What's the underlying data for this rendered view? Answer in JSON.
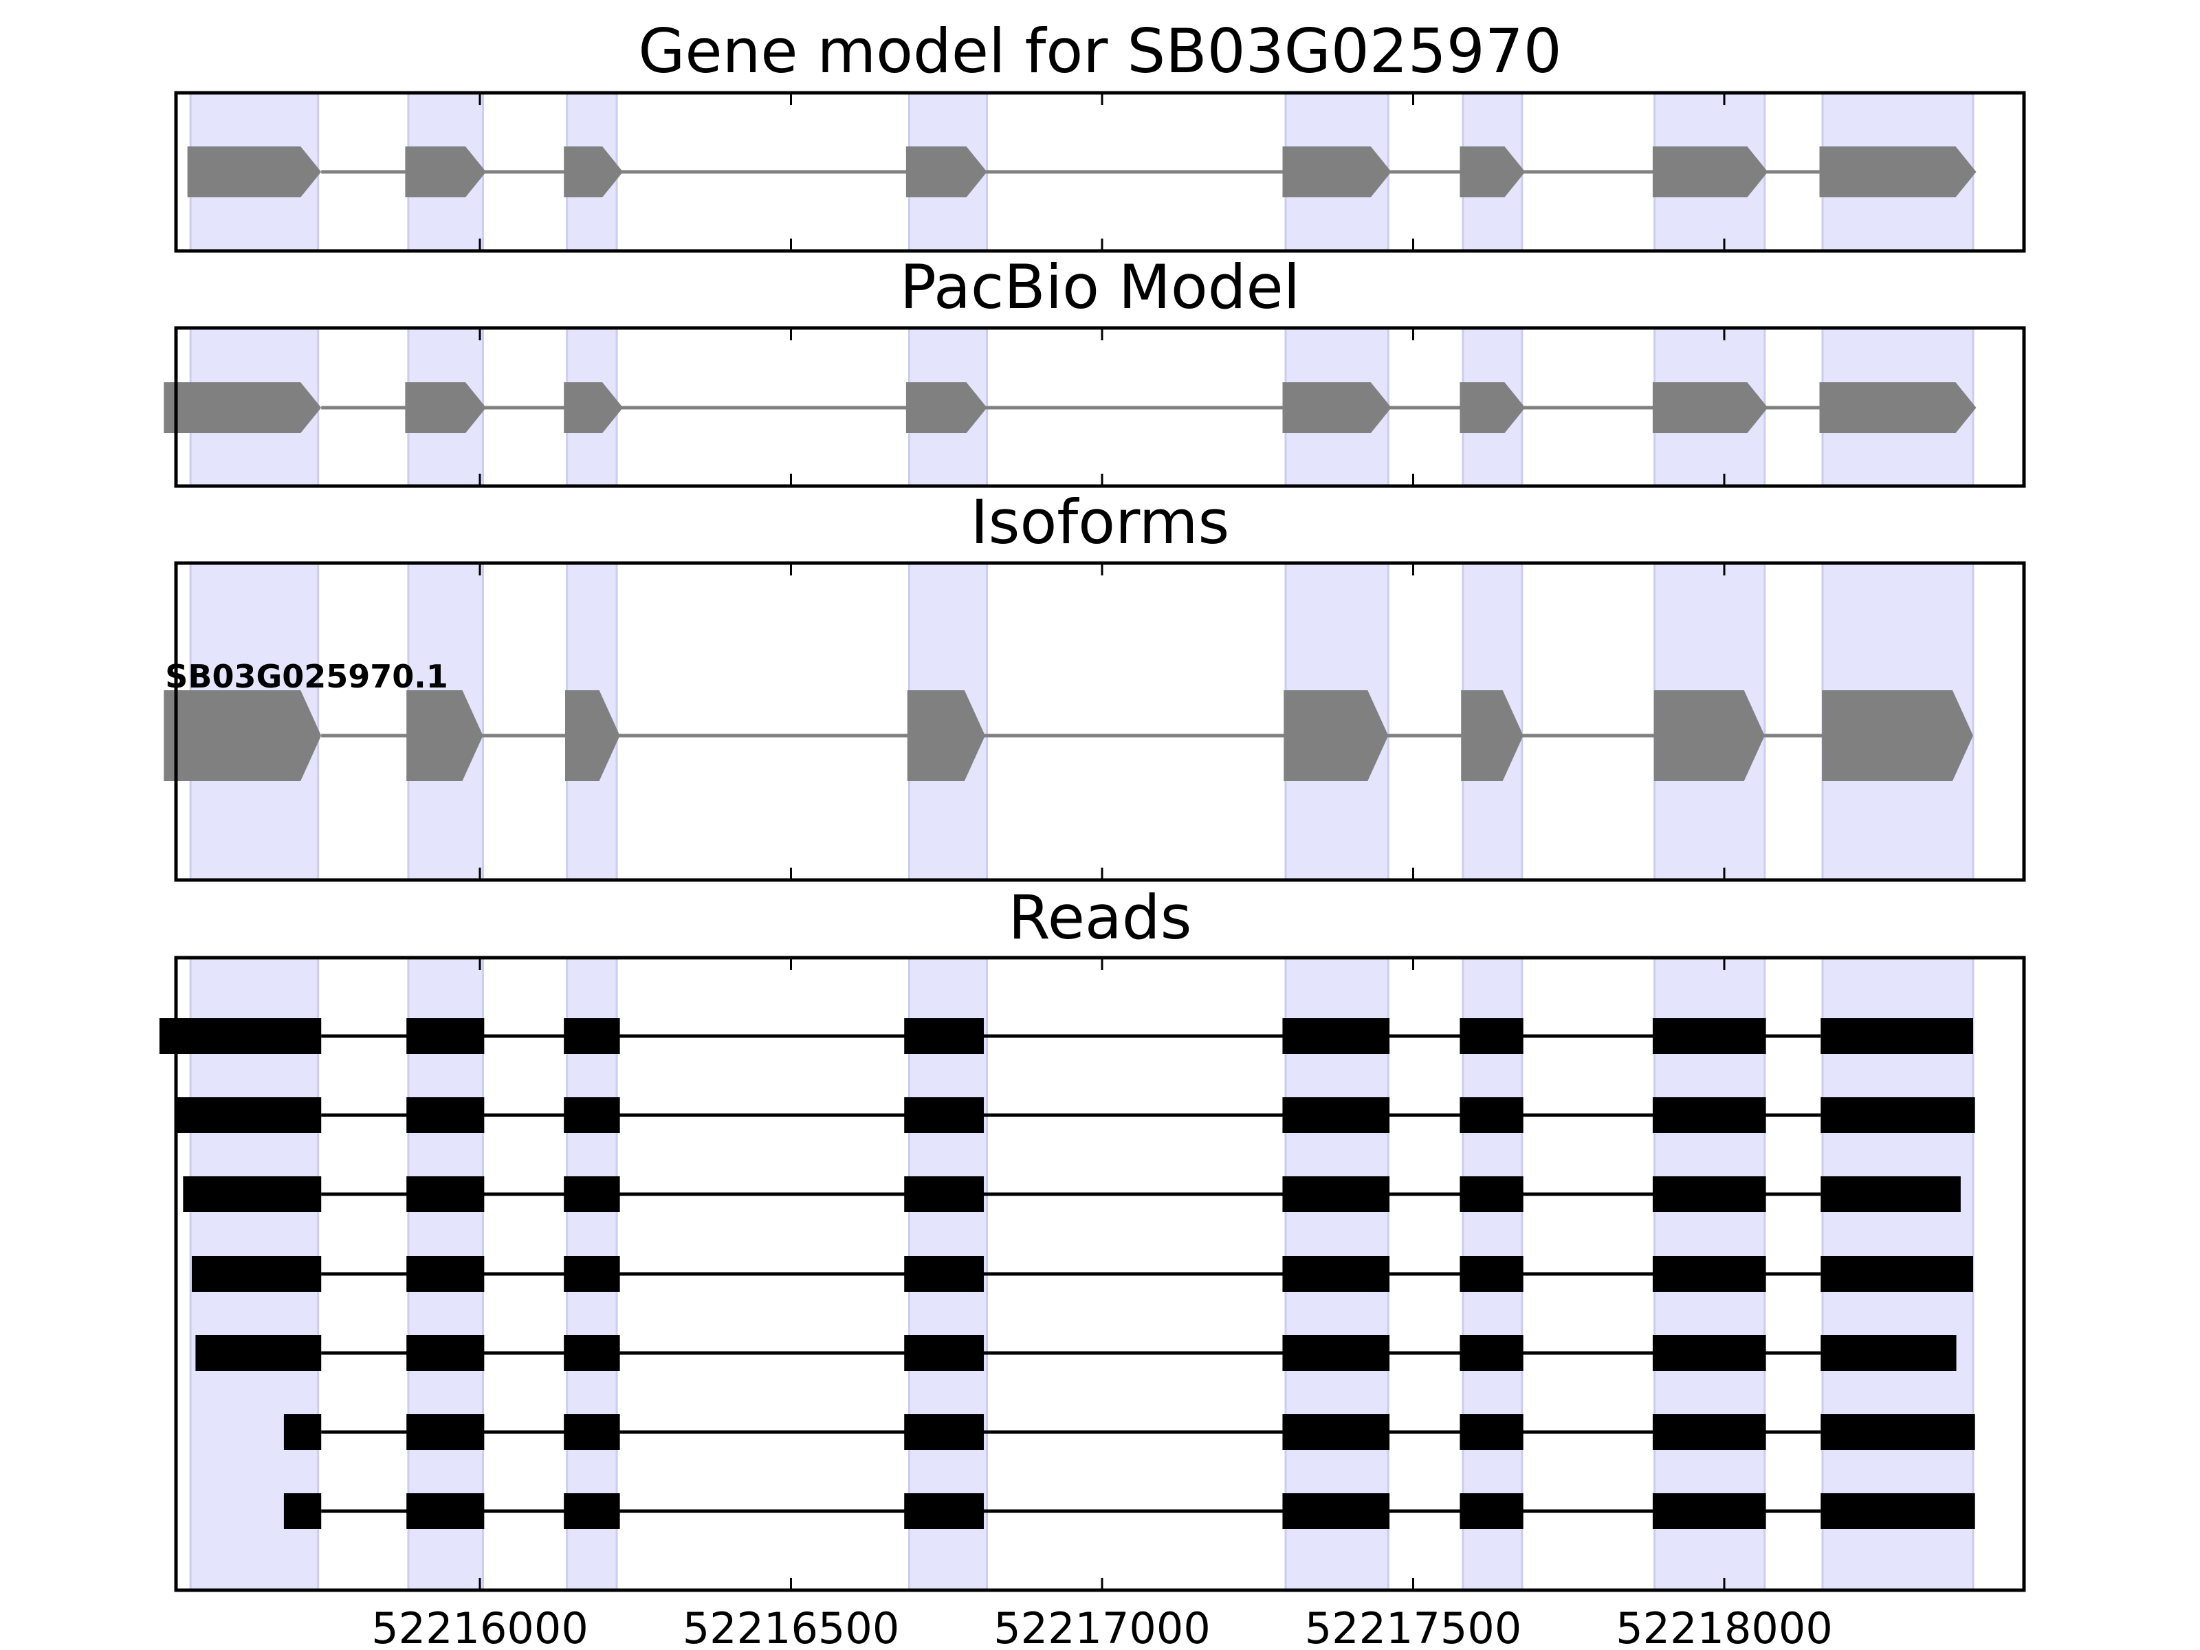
{
  "figure": {
    "colors": {
      "exon_highlight": "#e4e4fc",
      "exon_highlight_edge": "#ccccf4",
      "gene_feature": "#808080",
      "read_feature": "#000000",
      "axis": "#000000",
      "background": "#ffffff"
    },
    "x_axis": {
      "tick_values": [
        52216000,
        52216500,
        52217000,
        52217500,
        52218000
      ],
      "tick_labels": [
        "52216000",
        "52216500",
        "52217000",
        "52217500",
        "52218000"
      ]
    },
    "highlights": [
      {
        "start": 52215535,
        "end": 52215740
      },
      {
        "start": 52215885,
        "end": 52216005
      },
      {
        "start": 52216140,
        "end": 52216220
      },
      {
        "start": 52216690,
        "end": 52216815
      },
      {
        "start": 52217295,
        "end": 52217460
      },
      {
        "start": 52217580,
        "end": 52217675
      },
      {
        "start": 52217888,
        "end": 52218065
      },
      {
        "start": 52218158,
        "end": 52218400
      }
    ],
    "panels": [
      {
        "key": "gene_model",
        "title": "Gene model for SB03G025970",
        "features": [
          {
            "exons": [
              [
                52215530,
                52215745
              ],
              [
                52215880,
                52216010
              ],
              [
                52216135,
                52216230
              ],
              [
                52216685,
                52216815
              ],
              [
                52217290,
                52217465
              ],
              [
                52217575,
                52217680
              ],
              [
                52217885,
                52218070
              ],
              [
                52218153,
                52218405
              ]
            ]
          }
        ]
      },
      {
        "key": "pacbio_model",
        "title": "PacBio Model",
        "features": [
          {
            "exons": [
              [
                52215492,
                52215745
              ],
              [
                52215880,
                52216010
              ],
              [
                52216135,
                52216230
              ],
              [
                52216685,
                52216815
              ],
              [
                52217290,
                52217465
              ],
              [
                52217575,
                52217680
              ],
              [
                52217885,
                52218070
              ],
              [
                52218153,
                52218405
              ]
            ]
          }
        ]
      },
      {
        "key": "isoforms",
        "title": "Isoforms",
        "features": [
          {
            "label": "SB03G025970.1",
            "exons": [
              [
                52215492,
                52215745
              ],
              [
                52215882,
                52216005
              ],
              [
                52216137,
                52216225
              ],
              [
                52216687,
                52216812
              ],
              [
                52217292,
                52217460
              ],
              [
                52217577,
                52217677
              ],
              [
                52217887,
                52218065
              ],
              [
                52218157,
                52218400
              ]
            ]
          }
        ]
      },
      {
        "key": "reads",
        "title": "Reads",
        "features": [
          {
            "exons": [
              [
                52215485,
                52215745
              ],
              [
                52215882,
                52216007
              ],
              [
                52216135,
                52216225
              ],
              [
                52216682,
                52216810
              ],
              [
                52217290,
                52217462
              ],
              [
                52217575,
                52217677
              ],
              [
                52217885,
                52218067
              ],
              [
                52218155,
                52218400
              ]
            ]
          },
          {
            "exons": [
              [
                52215513,
                52215745
              ],
              [
                52215882,
                52216007
              ],
              [
                52216135,
                52216225
              ],
              [
                52216682,
                52216810
              ],
              [
                52217290,
                52217462
              ],
              [
                52217575,
                52217677
              ],
              [
                52217885,
                52218067
              ],
              [
                52218155,
                52218403
              ]
            ]
          },
          {
            "exons": [
              [
                52215523,
                52215745
              ],
              [
                52215882,
                52216007
              ],
              [
                52216135,
                52216225
              ],
              [
                52216682,
                52216810
              ],
              [
                52217290,
                52217462
              ],
              [
                52217575,
                52217677
              ],
              [
                52217885,
                52218067
              ],
              [
                52218155,
                52218380
              ]
            ]
          },
          {
            "exons": [
              [
                52215537,
                52215745
              ],
              [
                52215882,
                52216007
              ],
              [
                52216135,
                52216225
              ],
              [
                52216682,
                52216810
              ],
              [
                52217290,
                52217462
              ],
              [
                52217575,
                52217677
              ],
              [
                52217885,
                52218067
              ],
              [
                52218155,
                52218400
              ]
            ]
          },
          {
            "exons": [
              [
                52215543,
                52215745
              ],
              [
                52215882,
                52216007
              ],
              [
                52216135,
                52216225
              ],
              [
                52216682,
                52216810
              ],
              [
                52217290,
                52217462
              ],
              [
                52217575,
                52217677
              ],
              [
                52217885,
                52218067
              ],
              [
                52218155,
                52218373
              ]
            ]
          },
          {
            "exons": [
              [
                52215685,
                52215745
              ],
              [
                52215882,
                52216007
              ],
              [
                52216135,
                52216225
              ],
              [
                52216682,
                52216810
              ],
              [
                52217290,
                52217462
              ],
              [
                52217575,
                52217677
              ],
              [
                52217885,
                52218067
              ],
              [
                52218155,
                52218403
              ]
            ]
          },
          {
            "exons": [
              [
                52215685,
                52215745
              ],
              [
                52215882,
                52216007
              ],
              [
                52216135,
                52216225
              ],
              [
                52216682,
                52216810
              ],
              [
                52217290,
                52217462
              ],
              [
                52217575,
                52217677
              ],
              [
                52217885,
                52218067
              ],
              [
                52218155,
                52218403
              ]
            ]
          }
        ]
      }
    ]
  }
}
